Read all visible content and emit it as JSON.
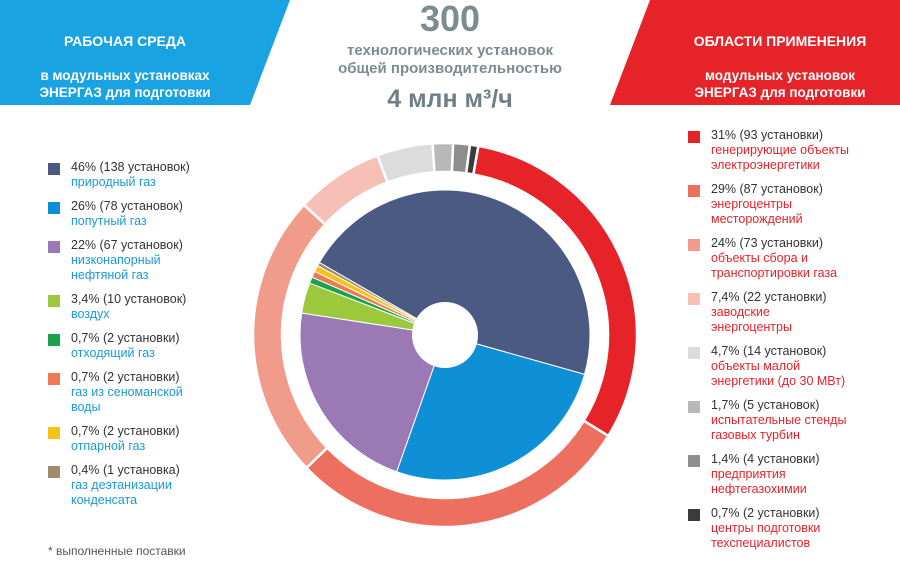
{
  "left_panel": {
    "title_line1": "РАБОЧАЯ СРЕДА",
    "title_rest": "в модульных установках\nЭНЕРГАЗ для подготовки\nи компримирования газа",
    "color": "#1aa3e2"
  },
  "right_panel": {
    "title_line1": "ОБЛАСТИ ПРИМЕНЕНИЯ",
    "title_rest": "модульных установок\nЭНЕРГАЗ для подготовки\nи компримирования газа",
    "color": "#e52329"
  },
  "center": {
    "number": "300",
    "text": "технологических установок\nобщей производительностью",
    "capacity": "4 млн м³/ч"
  },
  "footnote": "* выполненные поставки",
  "chart_data": [
    {
      "type": "pie",
      "series_label_pct": [
        "46% (138 установок)",
        "26% (78 установок)",
        "22% (67 установок)",
        "3,4% (10 установок)",
        "0,7% (2 установки)",
        "0,7% (2 установки)",
        "0,7% (2 установки)",
        "0,4% (1 установка)"
      ],
      "categories": [
        "природный газ",
        "попутный газ",
        "низконапорный\nнефтяной газ",
        "воздух",
        "отходящий газ",
        "газ из сеноманской\nводы",
        "отпарной газ",
        "газ деэтанизации\nконденсата"
      ],
      "values": [
        46,
        26,
        22,
        3.4,
        0.7,
        0.7,
        0.7,
        0.4
      ],
      "counts": [
        138,
        78,
        67,
        10,
        2,
        2,
        2,
        1
      ],
      "colors": [
        "#4b5a82",
        "#0f8fd6",
        "#9b79b5",
        "#9cc83c",
        "#1aa14a",
        "#ef7a52",
        "#f6c21a",
        "#a28c6a"
      ]
    },
    {
      "type": "pie",
      "series_label_pct": [
        "31% (93 установки)",
        "29% (87 установок)",
        "24% (73 установки)",
        "7,4% (22 установки)",
        "4,7% (14 установок)",
        "1,7% (5 установок)",
        "1,4% (4 установки)",
        "0,7% (2 установки)"
      ],
      "categories": [
        "генерирующие объекты\nэлектроэнергетики",
        "энергоцентры\nместорождений",
        "объекты сбора и\nтранспортировки газа",
        "заводские\nэнергоцентры",
        "объекты малой\nэнергетики (до 30 МВт)",
        "испытательные стенды\nгазовых турбин",
        "предприятия\nнефтегазохимии",
        "центры подготовки\nтехспециалистов"
      ],
      "values": [
        31,
        29,
        24,
        7.4,
        4.7,
        1.7,
        1.4,
        0.7
      ],
      "counts": [
        93,
        87,
        73,
        22,
        14,
        5,
        4,
        2
      ],
      "colors": [
        "#e52329",
        "#ec6f5f",
        "#f19c8b",
        "#f6c0b6",
        "#dcdcdc",
        "#b8b8b8",
        "#8e8e8e",
        "#3b3b3b"
      ]
    }
  ]
}
